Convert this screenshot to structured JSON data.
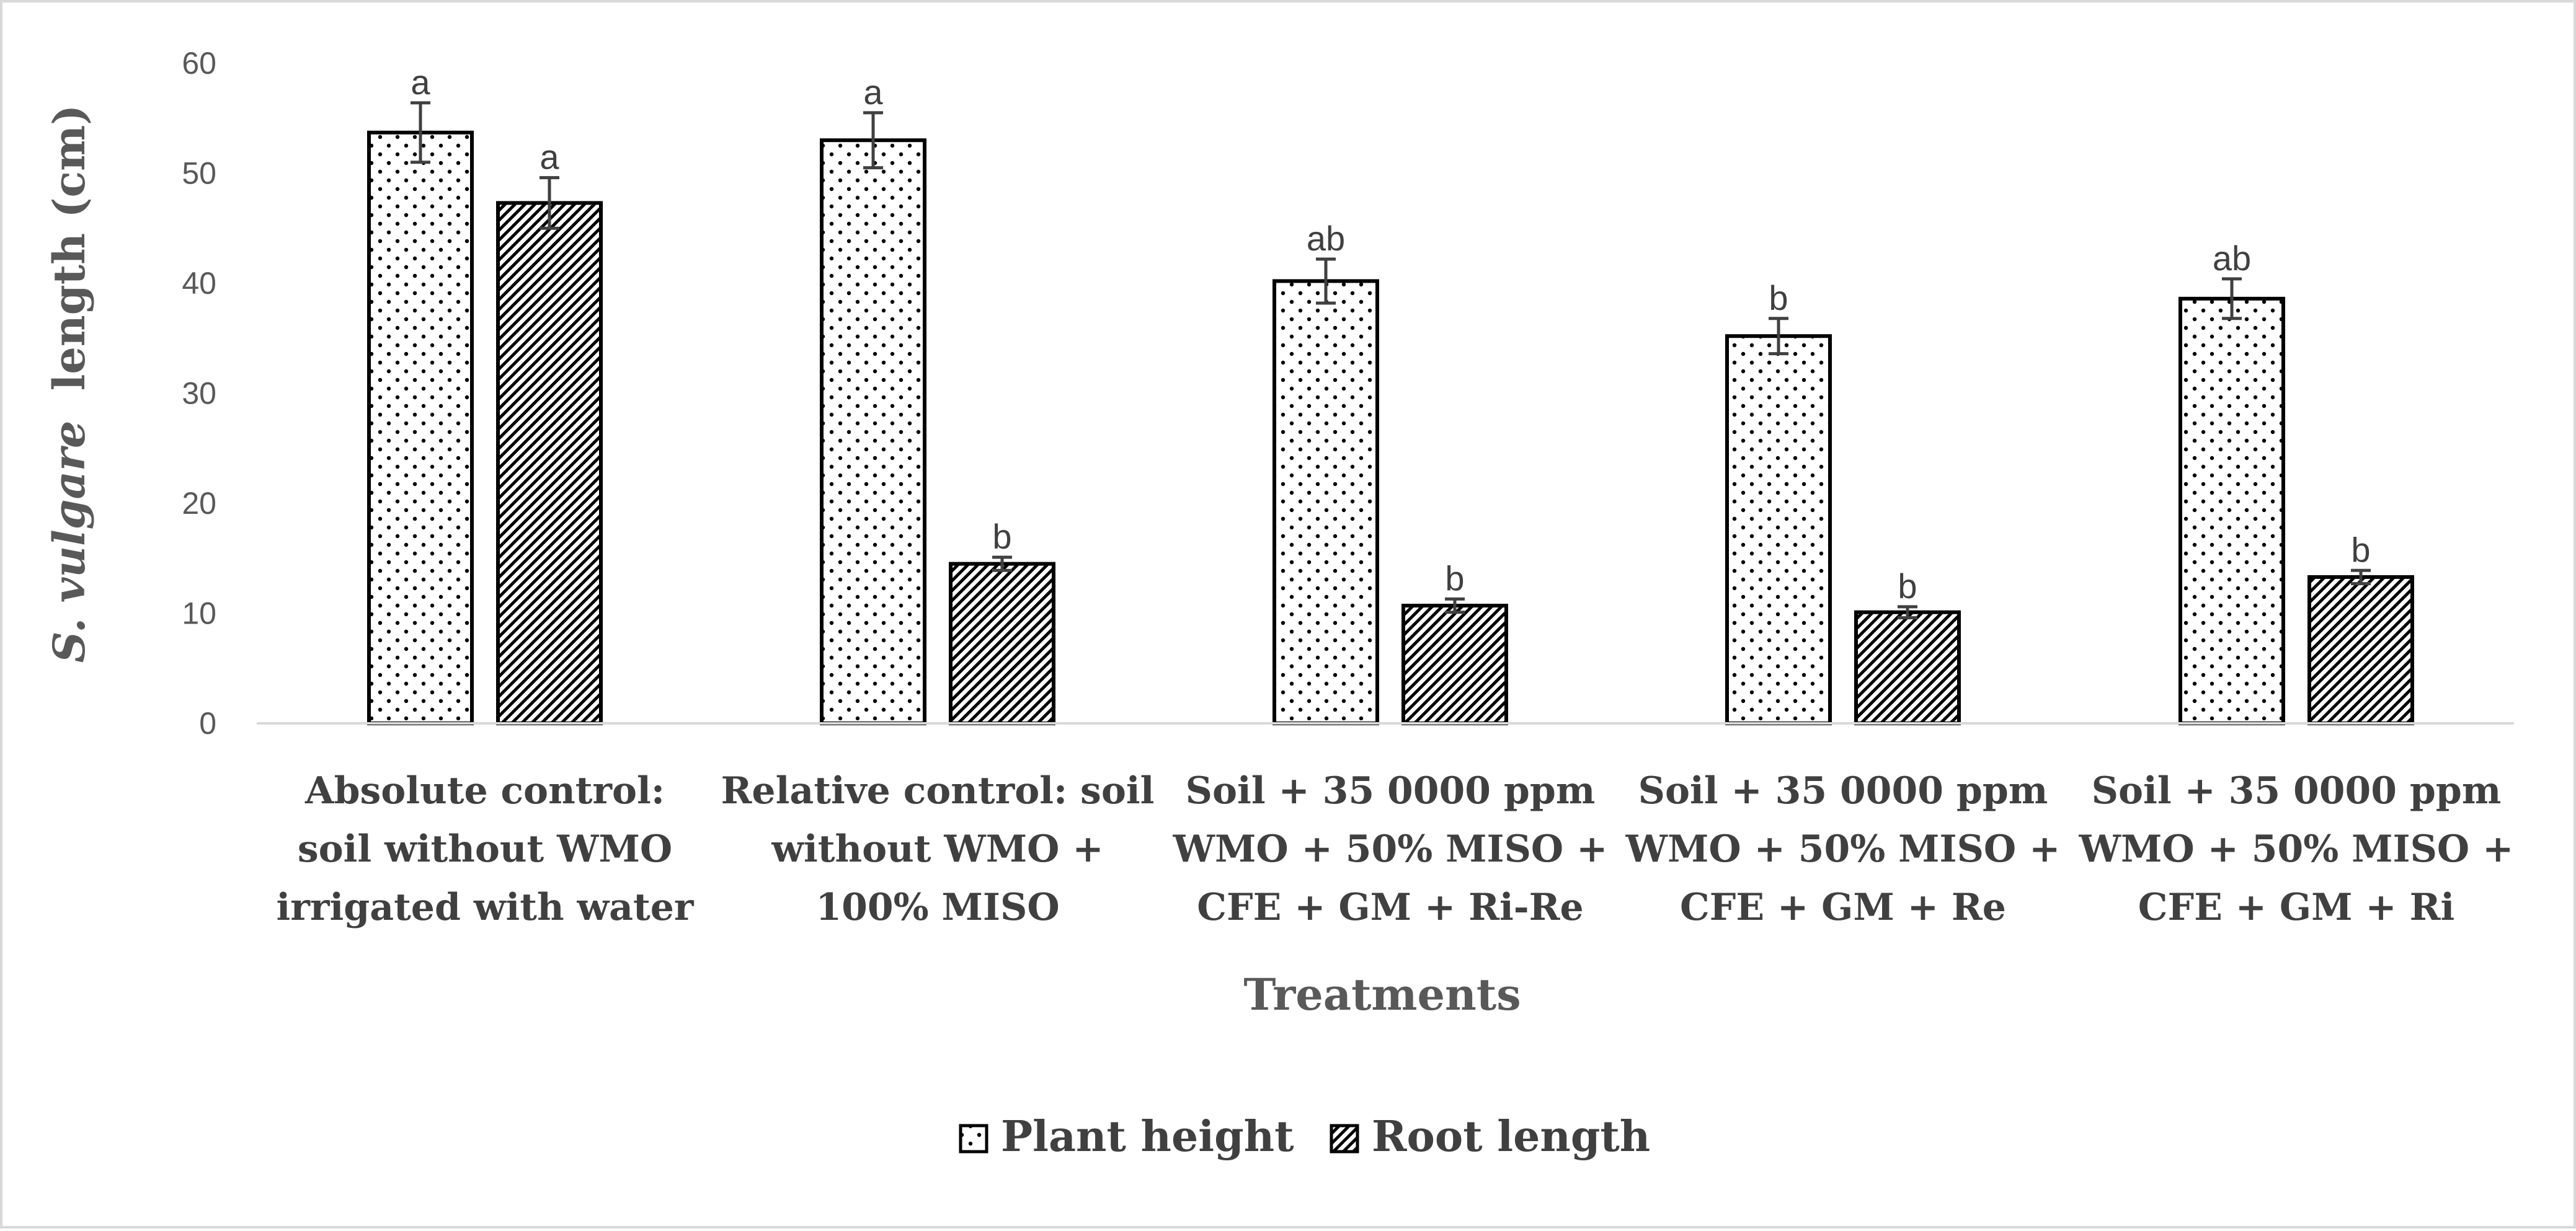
{
  "chart_data": {
    "type": "bar",
    "title": "",
    "xlabel": "Treatments",
    "ylabel_italic": "S. vulgare",
    "ylabel_rest": "length (cm)",
    "ylim": [
      0,
      60
    ],
    "yticks": [
      0,
      10,
      20,
      30,
      40,
      50,
      60
    ],
    "grid": false,
    "legend_position": "bottom",
    "categories": [
      [
        "Absolute control:",
        "soil without WMO",
        "irrigated with water"
      ],
      [
        "Relative control: soil",
        "without WMO +",
        "100% MISO"
      ],
      [
        "Soil + 35 0000 ppm",
        "WMO + 50% MISO +",
        "CFE + GM + Ri-Re"
      ],
      [
        "Soil + 35 0000 ppm",
        "WMO + 50% MISO +",
        "CFE + GM +  Re"
      ],
      [
        "Soil + 35 0000 ppm",
        "WMO + 50% MISO +",
        "CFE + GM + Ri"
      ]
    ],
    "series": [
      {
        "name": "Plant height",
        "pattern": "dots",
        "values": [
          53.7,
          53.0,
          40.2,
          35.2,
          38.6
        ],
        "errors": [
          2.7,
          2.5,
          2.0,
          1.6,
          1.8
        ],
        "letters": [
          "a",
          "a",
          "ab",
          "b",
          "ab"
        ]
      },
      {
        "name": "Root length",
        "pattern": "diagonal",
        "values": [
          47.3,
          14.5,
          10.7,
          10.1,
          13.3
        ],
        "errors": [
          2.3,
          0.6,
          0.6,
          0.5,
          0.6
        ],
        "letters": [
          "a",
          "b",
          "b",
          "b",
          "b"
        ]
      }
    ]
  }
}
